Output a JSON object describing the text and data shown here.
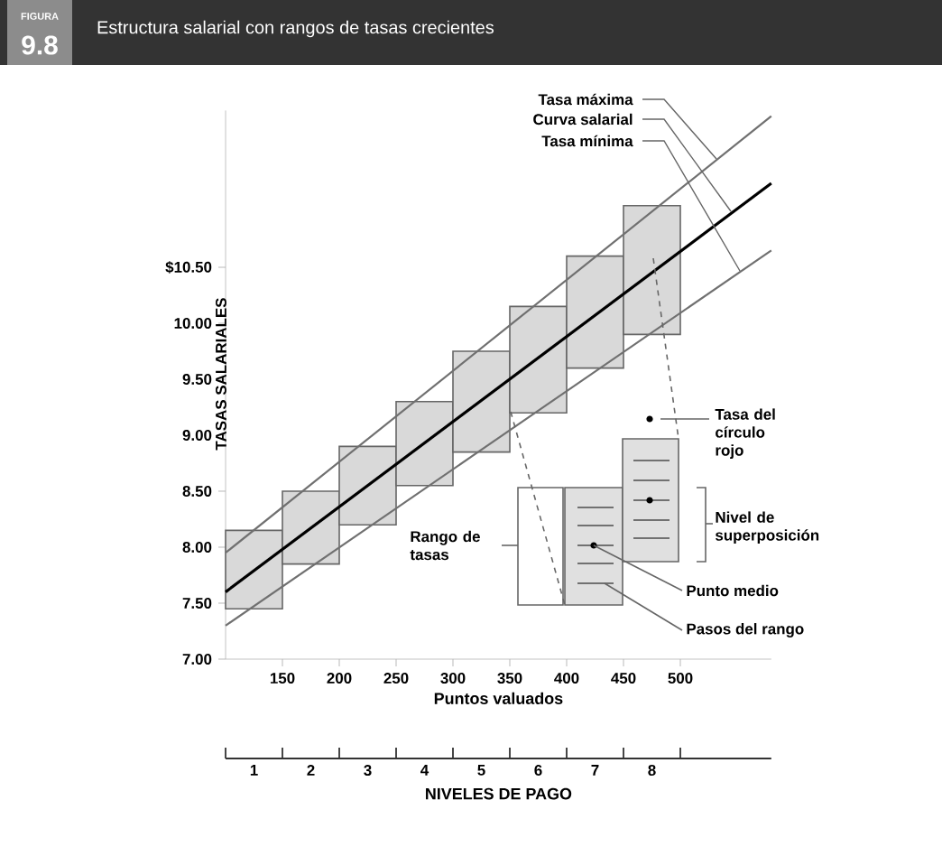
{
  "chart_data": {
    "type": "bar",
    "title": "Estructura salarial con rangos de tasas crecientes",
    "xlabel": "Puntos valuados",
    "ylabel": "TASAS SALARIALES",
    "x2label": "NIVELES DE PAGO",
    "xlim": [
      100,
      580
    ],
    "ylim": [
      7,
      11.9
    ],
    "xticks": [
      150,
      200,
      250,
      300,
      350,
      400,
      450,
      500
    ],
    "yticks": [
      {
        "value": 7,
        "label": "7.00"
      },
      {
        "value": 7.5,
        "label": "7.50"
      },
      {
        "value": 8,
        "label": "8.00"
      },
      {
        "value": 8.5,
        "label": "8.50"
      },
      {
        "value": 9,
        "label": "9.00"
      },
      {
        "value": 9.5,
        "label": "9.50"
      },
      {
        "value": 10,
        "label": "10.00"
      },
      {
        "value": 10.5,
        "label": "$10.50"
      }
    ],
    "x2lim": [
      0.5,
      10.1
    ],
    "x2ticks": [
      {
        "value": 0.5,
        "label": null
      },
      1,
      {
        "value": 1.5,
        "label": null
      },
      2,
      {
        "value": 2.5,
        "label": null
      },
      3,
      {
        "value": 3.5,
        "label": null
      },
      4,
      {
        "value": 4.5,
        "label": null
      },
      5,
      {
        "value": 5.5,
        "label": null
      },
      6,
      {
        "value": 6.5,
        "label": null
      },
      7,
      {
        "value": 7.5,
        "label": null
      },
      8,
      {
        "value": 8.5,
        "label": null
      }
    ],
    "series": [
      {
        "color": "#d9d9d9",
        "x": [
          125,
          175,
          225,
          275,
          325,
          375,
          425,
          475
        ],
        "base": [
          7.45,
          7.85,
          8.2,
          8.55,
          8.85,
          9.2,
          9.6,
          9.9
        ],
        "values": [
          0.7,
          0.65,
          0.7,
          0.75,
          0.9,
          0.95,
          1.0,
          1.15
        ]
      },
      {
        "type": "line",
        "name": "Tasa máxima",
        "color": "#707070",
        "x": [
          100,
          580
        ],
        "values": [
          7.95,
          11.85
        ]
      },
      {
        "type": "line",
        "name": "Curva salarial",
        "color": "#000000",
        "x": [
          100,
          580
        ],
        "values": [
          7.6,
          11.25
        ]
      },
      {
        "type": "line",
        "name": "Tasa mínima",
        "color": "#707070",
        "x": [
          100,
          580
        ],
        "values": [
          7.3,
          10.65
        ]
      }
    ],
    "annotations": [
      "FIGURA",
      "9.8",
      "Rango de tasas",
      "Tasa del círculo rojo",
      "Nivel de superposición",
      "Punto medio",
      "Pasos del rango"
    ]
  }
}
